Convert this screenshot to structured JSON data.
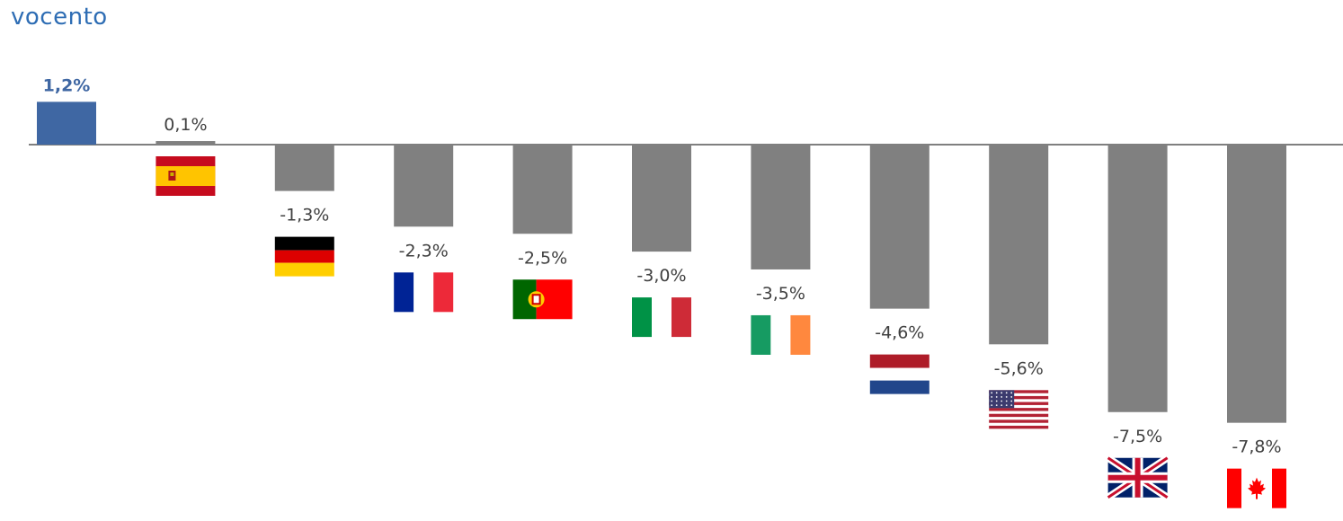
{
  "brand": {
    "logo_text": "vocento"
  },
  "colors": {
    "highlight": "#3f67a3",
    "bar": "#808080",
    "axis": "#7f7f7f",
    "label": "#404040"
  },
  "chart_data": {
    "type": "bar",
    "title": "",
    "xlabel": "",
    "ylabel": "",
    "categories": [
      "vocento",
      "Spain",
      "Germany",
      "France",
      "Portugal",
      "Italy",
      "Ireland",
      "Netherlands",
      "United States",
      "United Kingdom",
      "Canada"
    ],
    "category_icons": [
      "",
      "flag-spain",
      "flag-germany",
      "flag-france",
      "flag-portugal",
      "flag-italy",
      "flag-ireland",
      "flag-netherlands",
      "flag-usa",
      "flag-uk",
      "flag-canada"
    ],
    "values": [
      1.2,
      0.1,
      -1.3,
      -2.3,
      -2.5,
      -3.0,
      -3.5,
      -4.6,
      -5.6,
      -7.5,
      -7.8
    ],
    "value_labels": [
      "1,2%",
      "0,1%",
      "-1,3%",
      "-2,3%",
      "-2,5%",
      "-3,0%",
      "-3,5%",
      "-4,6%",
      "-5,6%",
      "-7,5%",
      "-7,8%"
    ],
    "highlight_index": 0,
    "units": "%",
    "grid": false,
    "legend": "none"
  }
}
